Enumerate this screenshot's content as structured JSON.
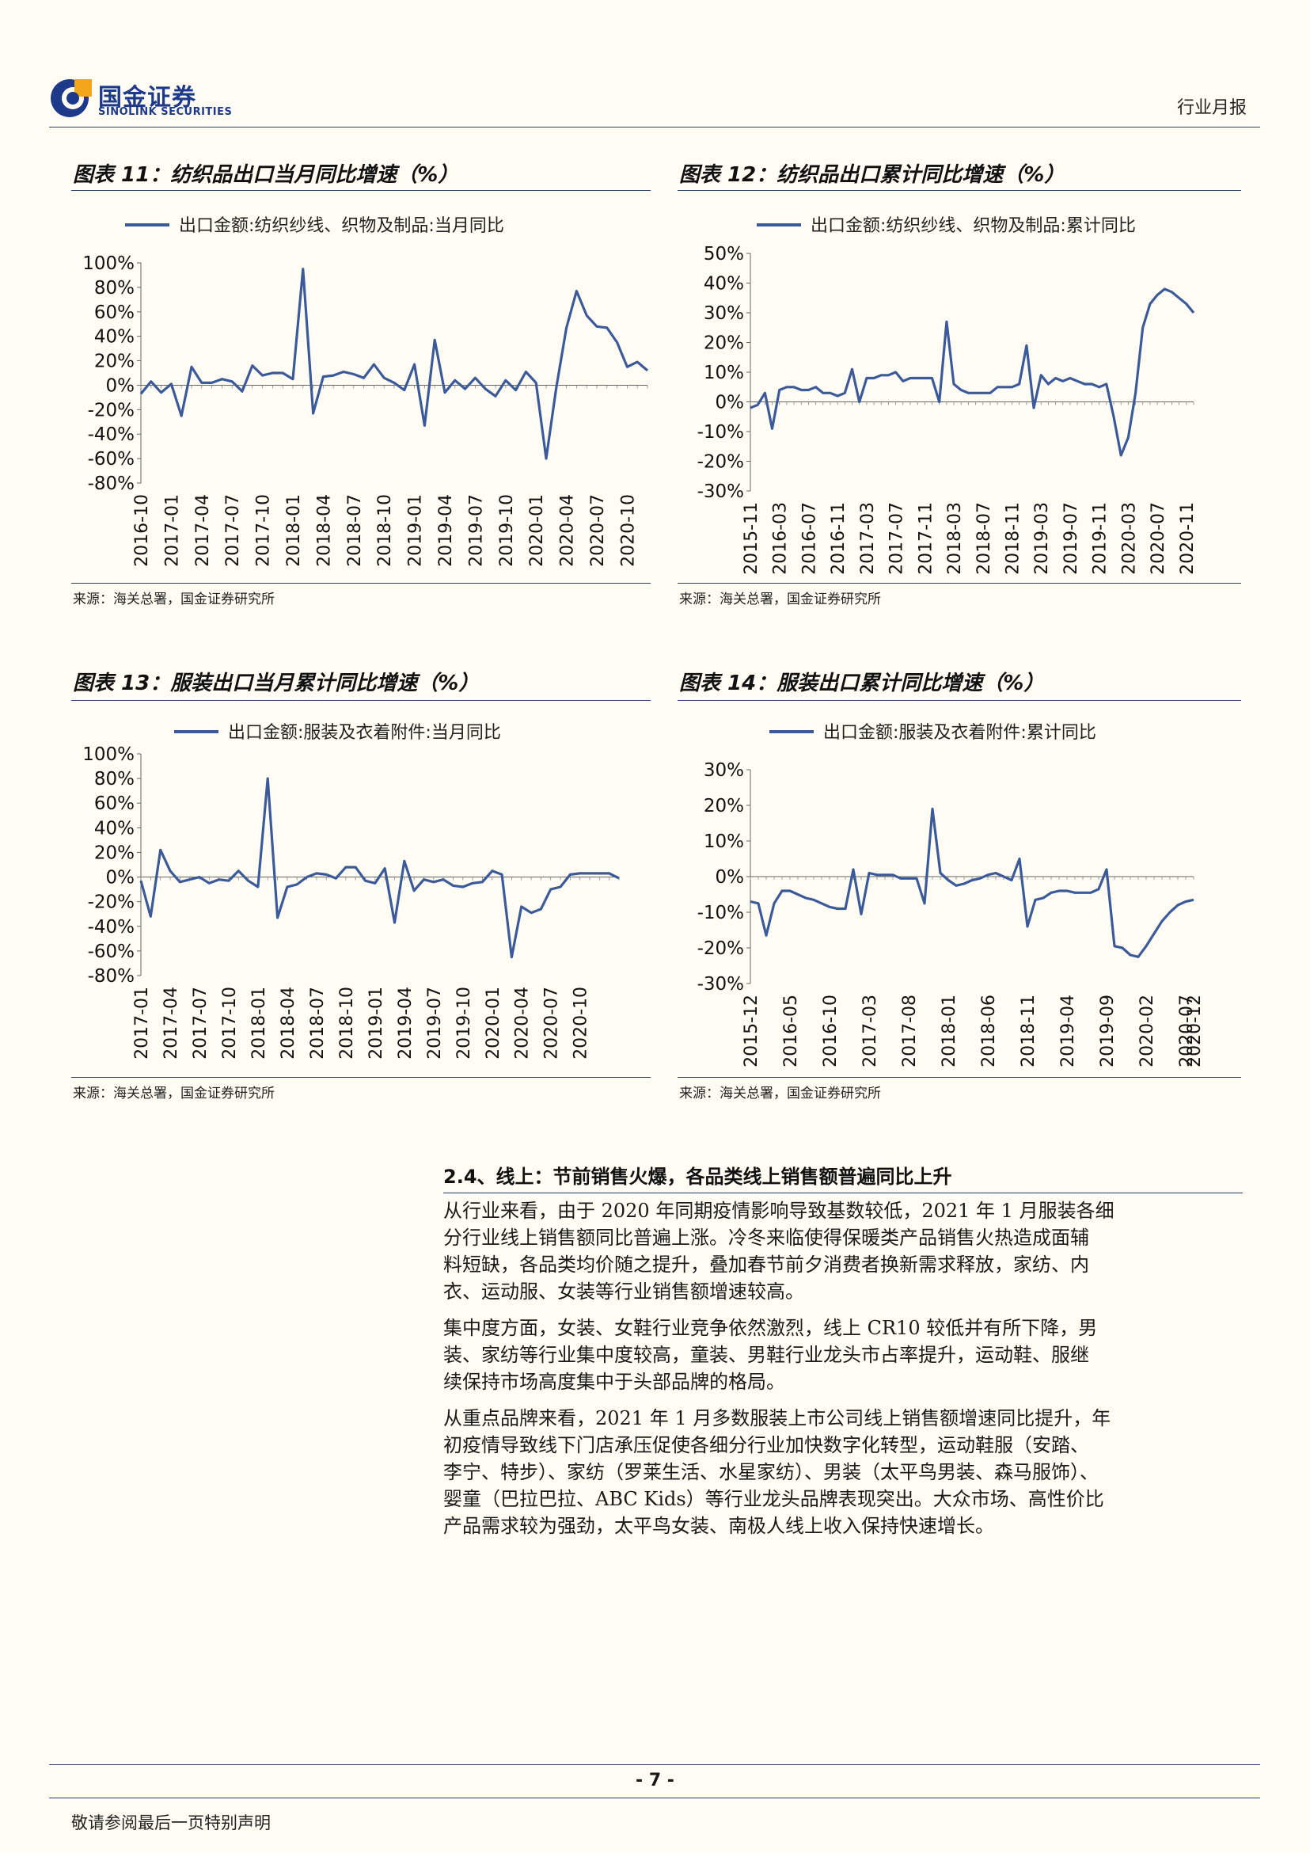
{
  "header": {
    "logo_cn": "国金证券",
    "logo_en": "SINOLINK SECURITIES",
    "report_type": "行业月报"
  },
  "figures": [
    {
      "title": "图表 11：纺织品出口当月同比增速（%）",
      "source": "来源：海关总署，国金证券研究所"
    },
    {
      "title": "图表 12：纺织品出口累计同比增速（%）",
      "source": "来源：海关总署，国金证券研究所"
    },
    {
      "title": "图表 13：服装出口当月累计同比增速（%）",
      "source": "来源：海关总署，国金证券研究所"
    },
    {
      "title": "图表 14：服装出口累计同比增速（%）",
      "source": "来源：海关总署，国金证券研究所"
    }
  ],
  "chart_data": [
    {
      "type": "line",
      "legend": "出口金额:纺织纱线、织物及制品:当月同比",
      "ylim": [
        -80,
        100
      ],
      "yticks": [
        "100%",
        "80%",
        "60%",
        "40%",
        "20%",
        "0%",
        "-20%",
        "-40%",
        "-60%",
        "-80%"
      ],
      "tick_labels": [
        "2016-10",
        "2017-01",
        "2017-04",
        "2017-07",
        "2017-10",
        "2018-01",
        "2018-04",
        "2018-07",
        "2018-10",
        "2019-01",
        "2019-04",
        "2019-07",
        "2019-10",
        "2020-01",
        "2020-04",
        "2020-07",
        "2020-10"
      ],
      "tick_step": 3,
      "values": [
        -7,
        3,
        -6,
        1,
        -25,
        15,
        2,
        2,
        5,
        3,
        -5,
        16,
        8,
        10,
        10,
        5,
        95,
        -23,
        7,
        8,
        11,
        9,
        6,
        17,
        6,
        2,
        -4,
        17,
        -33,
        37,
        -6,
        4,
        -3,
        6,
        -3,
        -9,
        4,
        -4,
        11,
        2,
        -60,
        -2,
        47,
        77,
        57,
        48,
        47,
        35,
        15,
        19,
        12
      ],
      "color": "#3c5a99"
    },
    {
      "type": "line",
      "legend": "出口金额:纺织纱线、织物及制品:累计同比",
      "ylim": [
        -30,
        50
      ],
      "yticks": [
        "50%",
        "40%",
        "30%",
        "20%",
        "10%",
        "0%",
        "-10%",
        "-20%",
        "-30%"
      ],
      "tick_labels": [
        "2015-11",
        "2016-03",
        "2016-07",
        "2016-11",
        "2017-03",
        "2017-07",
        "2017-11",
        "2018-03",
        "2018-07",
        "2018-11",
        "2019-03",
        "2019-07",
        "2019-11",
        "2020-03",
        "2020-07",
        "2020-11"
      ],
      "tick_step": 4,
      "values": [
        -2,
        -1,
        3,
        -9,
        4,
        5,
        5,
        4,
        4,
        5,
        3,
        3,
        2,
        3,
        11,
        0,
        8,
        8,
        9,
        9,
        10,
        7,
        8,
        8,
        8,
        8,
        0,
        27,
        6,
        4,
        3,
        3,
        3,
        3,
        5,
        5,
        5,
        6,
        19,
        -2,
        9,
        6,
        8,
        7,
        8,
        7,
        6,
        6,
        5,
        6,
        -5,
        -18,
        -12,
        3,
        25,
        33,
        36,
        38,
        37,
        35,
        33,
        30
      ],
      "color": "#3c5a99"
    },
    {
      "type": "line",
      "legend": "出口金额:服装及衣着附件:当月同比",
      "ylim": [
        -80,
        100
      ],
      "yticks": [
        "100%",
        "80%",
        "60%",
        "40%",
        "20%",
        "0%",
        "-20%",
        "-40%",
        "-60%",
        "-80%"
      ],
      "tick_labels": [
        "2017-01",
        "2017-04",
        "2017-07",
        "2017-10",
        "2018-01",
        "2018-04",
        "2018-07",
        "2018-10",
        "2019-01",
        "2019-04",
        "2019-07",
        "2019-10",
        "2020-01",
        "2020-04",
        "2020-07",
        "2020-10"
      ],
      "tick_step": 3,
      "values": [
        -3,
        -32,
        22,
        5,
        -4,
        -2,
        0,
        -5,
        -2,
        -3,
        5,
        -3,
        -8,
        80,
        -33,
        -8,
        -6,
        0,
        3,
        2,
        -1,
        8,
        8,
        -3,
        -5,
        7,
        -37,
        13,
        -11,
        -2,
        -4,
        -2,
        -7,
        -8,
        -5,
        -4,
        5,
        2,
        -65,
        -24,
        -29,
        -26,
        -10,
        -8,
        2,
        3,
        3,
        3,
        3,
        -1
      ],
      "color": "#3c5a99"
    },
    {
      "type": "line",
      "legend": "出口金额:服装及衣着附件:累计同比",
      "ylim": [
        -30,
        30
      ],
      "yticks": [
        "30%",
        "20%",
        "10%",
        "0%",
        "-10%",
        "-20%",
        "-30%"
      ],
      "tick_labels": [
        "2015-12",
        "2016-05",
        "2016-10",
        "2017-03",
        "2017-08",
        "2018-01",
        "2018-06",
        "2018-11",
        "2019-04",
        "2019-09",
        "2020-02",
        "2020-07",
        "2020-12"
      ],
      "tick_step": 5,
      "values": [
        -7,
        -7.5,
        -16.5,
        -7.5,
        -4,
        -4,
        -5,
        -6,
        -6.5,
        -7.5,
        -8.5,
        -9,
        -9,
        2,
        -10.5,
        1,
        0.5,
        0.5,
        0.5,
        -0.5,
        -0.5,
        -0.5,
        -7.5,
        19,
        1,
        -1,
        -2.5,
        -2,
        -1,
        -0.5,
        0.5,
        1,
        0,
        -1,
        5,
        -14,
        -6.5,
        -6,
        -4.5,
        -4,
        -4,
        -4.5,
        -4.5,
        -4.5,
        -3.5,
        2,
        -19.5,
        -20,
        -22,
        -22.5,
        -19.5,
        -16,
        -12.5,
        -10,
        -8,
        -7,
        -6.5
      ],
      "color": "#3c5a99"
    }
  ],
  "section": {
    "heading": "2.4、线上：节前销售火爆，各品类线上销售额普遍同比上升",
    "paragraphs": [
      [
        "从行业来看，由于 2020 年同期疫情影响导致基数较低，2021 年 1 月服装各细",
        "分行业线上销售额同比普遍上涨。冷冬来临使得保暖类产品销售火热造成面辅",
        "料短缺，各品类均价随之提升，叠加春节前夕消费者换新需求释放，家纺、内",
        "衣、运动服、女装等行业销售额增速较高。"
      ],
      [
        "集中度方面，女装、女鞋行业竞争依然激烈，线上 CR10 较低并有所下降，男",
        "装、家纺等行业集中度较高，童装、男鞋行业龙头市占率提升，运动鞋、服继",
        "续保持市场高度集中于头部品牌的格局。"
      ],
      [
        "从重点品牌来看，2021 年 1 月多数服装上市公司线上销售额增速同比提升，年",
        "初疫情导致线下门店承压促使各细分行业加快数字化转型，运动鞋服（安踏、",
        "李宁、特步）、家纺（罗莱生活、水星家纺）、男装（太平鸟男装、森马服饰）、",
        "婴童（巴拉巴拉、ABC Kids）等行业龙头品牌表现突出。大众市场、高性价比",
        "产品需求较为强劲，太平鸟女装、南极人线上收入保持快速增长。"
      ]
    ]
  },
  "footer": {
    "page_number": "- 7 -",
    "note": "敬请参阅最后一页特别声明"
  }
}
